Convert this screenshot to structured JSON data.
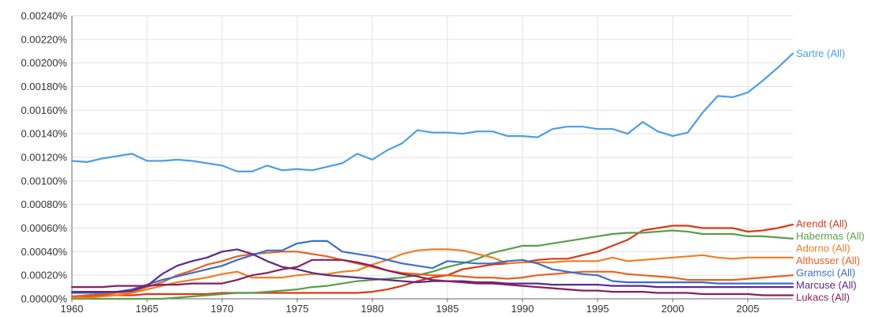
{
  "chart_data": {
    "type": "line",
    "title": "",
    "xlabel": "",
    "ylabel": "",
    "grid": true,
    "legend": "inline-right",
    "xlim": [
      1960,
      2008
    ],
    "ylim": [
      0,
      0.0024
    ],
    "x_ticks": [
      1960,
      1965,
      1970,
      1975,
      1980,
      1985,
      1990,
      1995,
      2000,
      2005
    ],
    "y_ticks": [
      0,
      0.0002,
      0.0004,
      0.0006,
      0.0008,
      0.001,
      0.0012,
      0.0014,
      0.0016,
      0.0018,
      0.002,
      0.0022,
      0.0024
    ],
    "y_tick_labels": [
      "0.00000%",
      "0.00020%",
      "0.00040%",
      "0.00060%",
      "0.00080%",
      "0.00100%",
      "0.00120%",
      "0.00140%",
      "0.00160%",
      "0.00180%",
      "0.00200%",
      "0.00220%",
      "0.00240%"
    ],
    "x": [
      1960,
      1961,
      1962,
      1963,
      1964,
      1965,
      1966,
      1967,
      1968,
      1969,
      1970,
      1971,
      1972,
      1973,
      1974,
      1975,
      1976,
      1977,
      1978,
      1979,
      1980,
      1981,
      1982,
      1983,
      1984,
      1985,
      1986,
      1987,
      1988,
      1989,
      1990,
      1991,
      1992,
      1993,
      1994,
      1995,
      1996,
      1997,
      1998,
      1999,
      2000,
      2001,
      2002,
      2003,
      2004,
      2005,
      2006,
      2007,
      2008
    ],
    "series": [
      {
        "name": "Sartre (All)",
        "color": "#4a9fe8",
        "values": [
          0.00117,
          0.00116,
          0.00119,
          0.00121,
          0.00123,
          0.00117,
          0.00117,
          0.00118,
          0.00117,
          0.00115,
          0.00113,
          0.00108,
          0.00108,
          0.00113,
          0.00109,
          0.0011,
          0.00109,
          0.00112,
          0.00115,
          0.00123,
          0.00118,
          0.00126,
          0.00132,
          0.00143,
          0.00141,
          0.00141,
          0.0014,
          0.00142,
          0.00142,
          0.00138,
          0.00138,
          0.00137,
          0.00144,
          0.00146,
          0.00146,
          0.00144,
          0.00144,
          0.0014,
          0.0015,
          0.00142,
          0.00138,
          0.00141,
          0.00158,
          0.00172,
          0.00171,
          0.00175,
          0.00185,
          0.00196,
          0.00208
        ]
      },
      {
        "name": "Arendt (All)",
        "color": "#dc3912",
        "values": [
          2e-05,
          2e-05,
          3e-05,
          3e-05,
          3e-05,
          4e-05,
          4e-05,
          4e-05,
          4e-05,
          4e-05,
          5e-05,
          5e-05,
          5e-05,
          5e-05,
          5e-05,
          5e-05,
          5e-05,
          5e-05,
          5e-05,
          5e-05,
          6e-05,
          8e-05,
          0.00011,
          0.00015,
          0.00018,
          0.0002,
          0.00025,
          0.00027,
          0.00029,
          0.0003,
          0.00031,
          0.00033,
          0.00034,
          0.00034,
          0.00037,
          0.0004,
          0.00045,
          0.0005,
          0.00058,
          0.0006,
          0.00062,
          0.00062,
          0.0006,
          0.0006,
          0.0006,
          0.00057,
          0.00058,
          0.0006,
          0.00063
        ]
      },
      {
        "name": "Habermas (All)",
        "color": "#5a9e4b",
        "values": [
          0.0,
          0.0,
          0.0,
          0.0,
          0.0,
          0.0,
          0.0,
          1e-05,
          2e-05,
          3e-05,
          4e-05,
          5e-05,
          5e-05,
          6e-05,
          7e-05,
          8e-05,
          0.0001,
          0.00011,
          0.00013,
          0.00015,
          0.00016,
          0.00017,
          0.00018,
          0.0002,
          0.00023,
          0.00027,
          0.0003,
          0.00034,
          0.00039,
          0.00042,
          0.00045,
          0.00045,
          0.00047,
          0.00049,
          0.00051,
          0.00053,
          0.00055,
          0.00056,
          0.00056,
          0.00057,
          0.00058,
          0.00057,
          0.00055,
          0.00055,
          0.00055,
          0.00053,
          0.00053,
          0.00052,
          0.00051
        ]
      },
      {
        "name": "Adorno (All)",
        "color": "#f07e1e",
        "values": [
          1e-05,
          1e-05,
          2e-05,
          3e-05,
          5e-05,
          8e-05,
          0.00011,
          0.00014,
          0.00016,
          0.00018,
          0.00021,
          0.00023,
          0.00018,
          0.00018,
          0.00018,
          0.0002,
          0.00021,
          0.00021,
          0.00023,
          0.00024,
          0.00029,
          0.00033,
          0.00038,
          0.00041,
          0.00042,
          0.00042,
          0.00041,
          0.00038,
          0.00035,
          0.0003,
          0.00031,
          0.00031,
          0.00031,
          0.00032,
          0.00032,
          0.00032,
          0.00035,
          0.00032,
          0.00033,
          0.00034,
          0.00035,
          0.00036,
          0.00037,
          0.00035,
          0.00034,
          0.00035,
          0.00035,
          0.00035,
          0.00035
        ]
      },
      {
        "name": "Althusser (All)",
        "color": "#e8601e",
        "values": [
          2e-05,
          3e-05,
          4e-05,
          5e-05,
          6e-05,
          0.0001,
          0.00014,
          0.0002,
          0.00024,
          0.00029,
          0.00032,
          0.00036,
          0.00038,
          0.00039,
          0.0004,
          0.0004,
          0.00038,
          0.00036,
          0.00033,
          0.0003,
          0.00027,
          0.00024,
          0.00022,
          0.00021,
          0.0002,
          0.0002,
          0.00019,
          0.00018,
          0.00018,
          0.00017,
          0.00018,
          0.0002,
          0.00021,
          0.00022,
          0.00023,
          0.00023,
          0.00023,
          0.00021,
          0.0002,
          0.00019,
          0.00018,
          0.00016,
          0.00016,
          0.00016,
          0.00016,
          0.00017,
          0.00018,
          0.00019,
          0.0002
        ]
      },
      {
        "name": "Gramsci (All)",
        "color": "#3a6fc9",
        "values": [
          5e-05,
          5e-05,
          5e-05,
          6e-05,
          8e-05,
          0.00012,
          0.00016,
          0.00019,
          0.00022,
          0.00025,
          0.00028,
          0.00033,
          0.00037,
          0.00041,
          0.00041,
          0.00047,
          0.00049,
          0.00049,
          0.0004,
          0.00038,
          0.00036,
          0.00033,
          0.0003,
          0.00028,
          0.00026,
          0.00032,
          0.00031,
          0.0003,
          0.0003,
          0.00032,
          0.00033,
          0.0003,
          0.00025,
          0.00023,
          0.00021,
          0.0002,
          0.00015,
          0.00014,
          0.00014,
          0.00014,
          0.00014,
          0.00014,
          0.00014,
          0.00013,
          0.00013,
          0.00013,
          0.00013,
          0.00013,
          0.00013
        ]
      },
      {
        "name": "Marcuse (All)",
        "color": "#5b2a8c",
        "values": [
          6e-05,
          6e-05,
          6e-05,
          6e-05,
          7e-05,
          0.00011,
          0.00021,
          0.00028,
          0.00032,
          0.00035,
          0.0004,
          0.00042,
          0.00038,
          0.00032,
          0.00027,
          0.00025,
          0.00022,
          0.0002,
          0.00019,
          0.00018,
          0.00017,
          0.00016,
          0.00015,
          0.00014,
          0.00015,
          0.00015,
          0.00015,
          0.00014,
          0.00014,
          0.00013,
          0.00013,
          0.00013,
          0.00012,
          0.00012,
          0.00012,
          0.00012,
          0.00011,
          0.00011,
          0.00011,
          0.0001,
          0.0001,
          0.0001,
          0.0001,
          0.0001,
          0.0001,
          0.0001,
          0.0001,
          0.0001,
          0.0001
        ]
      },
      {
        "name": "Lukacs (All)",
        "color": "#8a1e5c",
        "values": [
          0.0001,
          0.0001,
          0.0001,
          0.00011,
          0.00011,
          0.00011,
          0.00012,
          0.00012,
          0.00013,
          0.00013,
          0.00013,
          0.00016,
          0.0002,
          0.00022,
          0.00025,
          0.00027,
          0.00033,
          0.00033,
          0.00033,
          0.00031,
          0.00028,
          0.00024,
          0.00021,
          0.00019,
          0.00016,
          0.00015,
          0.00014,
          0.00013,
          0.00013,
          0.00012,
          0.00011,
          0.0001,
          9e-05,
          8e-05,
          7e-05,
          7e-05,
          6e-05,
          6e-05,
          6e-05,
          5e-05,
          5e-05,
          5e-05,
          4e-05,
          4e-05,
          4e-05,
          4e-05,
          3e-05,
          3e-05,
          3e-05
        ]
      }
    ]
  }
}
